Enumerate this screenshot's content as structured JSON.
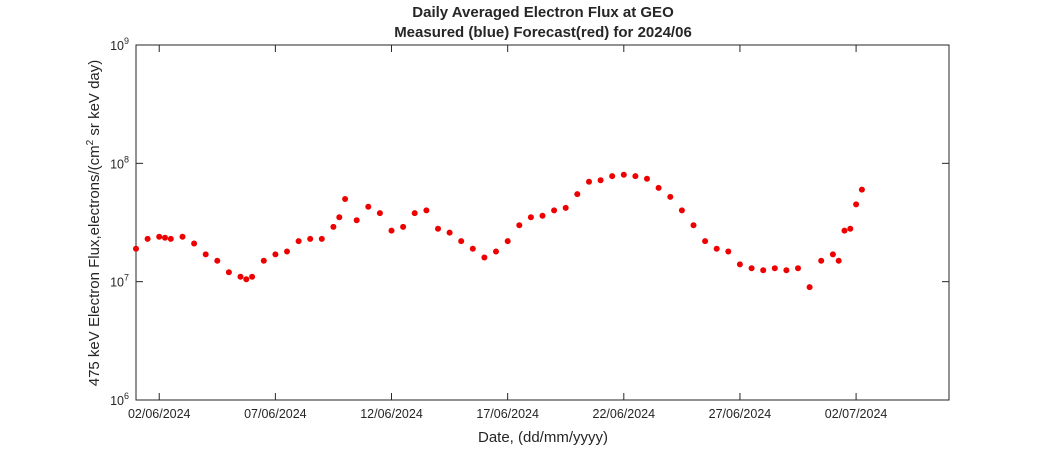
{
  "chart_data": {
    "type": "scatter",
    "title": "Daily Averaged Electron Flux at GEO",
    "subtitle": "Measured (blue) Forecast(red) for 2024/06",
    "xlabel": "Date, (dd/mm/yyyy)",
    "ylabel": "475 keV Electron Flux,electrons/(cm² sr keV day)",
    "ylabel_parts": {
      "pre": "475 keV Electron Flux,electrons/(cm",
      "sup": "2",
      "post": " sr keV day)"
    },
    "y_scale": "log",
    "ylim": [
      1000000,
      1000000000
    ],
    "y_ticks": [
      {
        "value": 1000000,
        "base": "10",
        "exp": "6"
      },
      {
        "value": 10000000,
        "base": "10",
        "exp": "7"
      },
      {
        "value": 100000000,
        "base": "10",
        "exp": "8"
      },
      {
        "value": 1000000000,
        "base": "10",
        "exp": "9"
      }
    ],
    "xlim": [
      "2024-06-01",
      "2024-07-06"
    ],
    "x_ticks": [
      {
        "value": "2024-06-02",
        "label": "02/06/2024"
      },
      {
        "value": "2024-06-07",
        "label": "07/06/2024"
      },
      {
        "value": "2024-06-12",
        "label": "12/06/2024"
      },
      {
        "value": "2024-06-17",
        "label": "17/06/2024"
      },
      {
        "value": "2024-06-22",
        "label": "22/06/2024"
      },
      {
        "value": "2024-06-27",
        "label": "27/06/2024"
      },
      {
        "value": "2024-07-02",
        "label": "02/07/2024"
      }
    ],
    "grid": false,
    "series": [
      {
        "color": "#ee0000",
        "x": [
          "2024-06-01",
          "2024-06-01T12:00",
          "2024-06-02",
          "2024-06-02T06:00",
          "2024-06-02T12:00",
          "2024-06-03",
          "2024-06-03T12:00",
          "2024-06-04",
          "2024-06-04T12:00",
          "2024-06-05",
          "2024-06-05T12:00",
          "2024-06-05T18:00",
          "2024-06-06",
          "2024-06-06T12:00",
          "2024-06-07",
          "2024-06-07T12:00",
          "2024-06-08",
          "2024-06-08T12:00",
          "2024-06-09",
          "2024-06-09T12:00",
          "2024-06-09T18:00",
          "2024-06-10",
          "2024-06-10T12:00",
          "2024-06-11",
          "2024-06-11T12:00",
          "2024-06-12",
          "2024-06-12T12:00",
          "2024-06-13",
          "2024-06-13T12:00",
          "2024-06-14",
          "2024-06-14T12:00",
          "2024-06-15",
          "2024-06-15T12:00",
          "2024-06-16",
          "2024-06-16T12:00",
          "2024-06-17",
          "2024-06-17T12:00",
          "2024-06-18",
          "2024-06-18T12:00",
          "2024-06-19",
          "2024-06-19T12:00",
          "2024-06-20",
          "2024-06-20T12:00",
          "2024-06-21",
          "2024-06-21T12:00",
          "2024-06-22",
          "2024-06-22T12:00",
          "2024-06-23",
          "2024-06-23T12:00",
          "2024-06-24",
          "2024-06-24T12:00",
          "2024-06-25",
          "2024-06-25T12:00",
          "2024-06-26",
          "2024-06-26T12:00",
          "2024-06-27",
          "2024-06-27T12:00",
          "2024-06-28",
          "2024-06-28T12:00",
          "2024-06-29",
          "2024-06-29T12:00",
          "2024-06-30",
          "2024-06-30T12:00",
          "2024-07-01",
          "2024-07-01T06:00",
          "2024-07-01T12:00",
          "2024-07-01T18:00",
          "2024-07-02",
          "2024-07-02T06:00"
        ],
        "values": [
          19000000,
          23000000,
          24000000,
          23500000,
          23000000,
          24000000,
          21000000,
          17000000,
          15000000,
          12000000,
          11000000,
          10500000,
          11000000,
          15000000,
          17000000,
          18000000,
          22000000,
          23000000,
          23000000,
          29000000,
          35000000,
          50000000,
          33000000,
          43000000,
          38000000,
          27000000,
          29000000,
          38000000,
          40000000,
          28000000,
          26000000,
          22000000,
          19000000,
          16000000,
          18000000,
          22000000,
          30000000,
          35000000,
          36000000,
          40000000,
          42000000,
          55000000,
          70000000,
          72000000,
          78000000,
          80000000,
          78000000,
          74000000,
          62000000,
          52000000,
          40000000,
          30000000,
          22000000,
          19000000,
          18000000,
          14000000,
          13000000,
          12500000,
          13000000,
          12500000,
          13000000,
          9000000,
          15000000,
          17000000,
          15000000,
          27000000,
          28000000,
          45000000,
          60000000
        ]
      }
    ]
  }
}
